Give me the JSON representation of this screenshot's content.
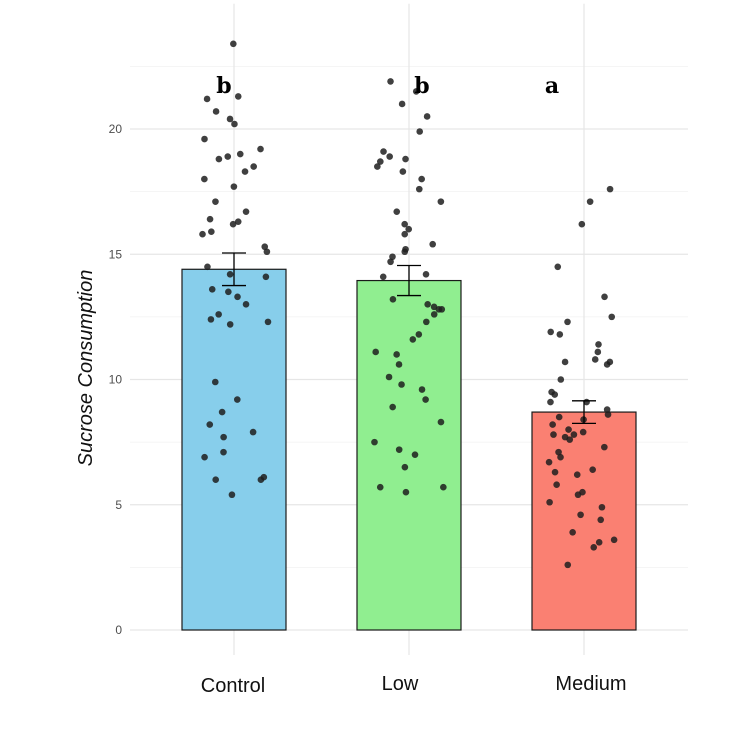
{
  "chart_data": {
    "type": "bar",
    "title": "",
    "xlabel": "",
    "ylabel": "Sucrose Consumption",
    "ylim": [
      -1,
      25
    ],
    "yticks": [
      0,
      5,
      10,
      15,
      20
    ],
    "grid": true,
    "legend": "none",
    "categories": [
      "Control",
      "Low",
      "Medium"
    ],
    "values": [
      14.4,
      13.95,
      8.7
    ],
    "errors": [
      0.65,
      0.6,
      0.45
    ],
    "significance": [
      "b",
      "b",
      "a"
    ],
    "colors": [
      "#87CEEB",
      "#90EE90",
      "#FA8072"
    ],
    "points": [
      [
        23.4,
        21.3,
        21.2,
        20.7,
        20.4,
        20.2,
        19.6,
        19.2,
        19.0,
        18.9,
        18.8,
        18.5,
        18.3,
        18.0,
        17.7,
        17.1,
        16.7,
        16.4,
        16.3,
        16.2,
        15.9,
        15.8,
        15.3,
        15.1,
        14.5,
        14.2,
        14.1,
        13.6,
        13.5,
        13.3,
        13.0,
        12.6,
        12.4,
        12.3,
        12.2,
        9.9,
        9.2,
        8.7,
        8.2,
        7.9,
        7.7,
        7.1,
        6.9,
        6.1,
        6.0,
        6.0,
        5.4
      ],
      [
        21.9,
        21.5,
        21.0,
        20.5,
        19.9,
        19.1,
        18.9,
        18.8,
        18.7,
        18.5,
        18.3,
        18.0,
        17.6,
        17.1,
        16.7,
        16.2,
        16.0,
        15.8,
        15.4,
        15.2,
        15.1,
        14.9,
        14.7,
        14.2,
        14.1,
        13.2,
        13.0,
        12.9,
        12.8,
        12.8,
        12.6,
        12.3,
        11.8,
        11.6,
        11.1,
        11.0,
        10.6,
        10.1,
        9.8,
        9.6,
        9.2,
        8.9,
        8.3,
        7.5,
        7.2,
        7.0,
        6.5,
        5.7,
        5.7,
        5.5
      ],
      [
        17.6,
        17.1,
        16.2,
        14.5,
        13.3,
        12.5,
        12.3,
        11.9,
        11.8,
        11.4,
        11.1,
        10.8,
        10.7,
        10.7,
        10.6,
        10.0,
        9.5,
        9.4,
        9.1,
        9.1,
        8.8,
        8.6,
        8.5,
        8.4,
        8.2,
        8.0,
        7.9,
        7.8,
        7.8,
        7.7,
        7.6,
        7.3,
        7.1,
        6.9,
        6.7,
        6.4,
        6.3,
        6.2,
        5.8,
        5.5,
        5.4,
        5.1,
        4.9,
        4.6,
        4.4,
        3.9,
        3.6,
        3.5,
        3.3,
        2.6
      ]
    ]
  }
}
